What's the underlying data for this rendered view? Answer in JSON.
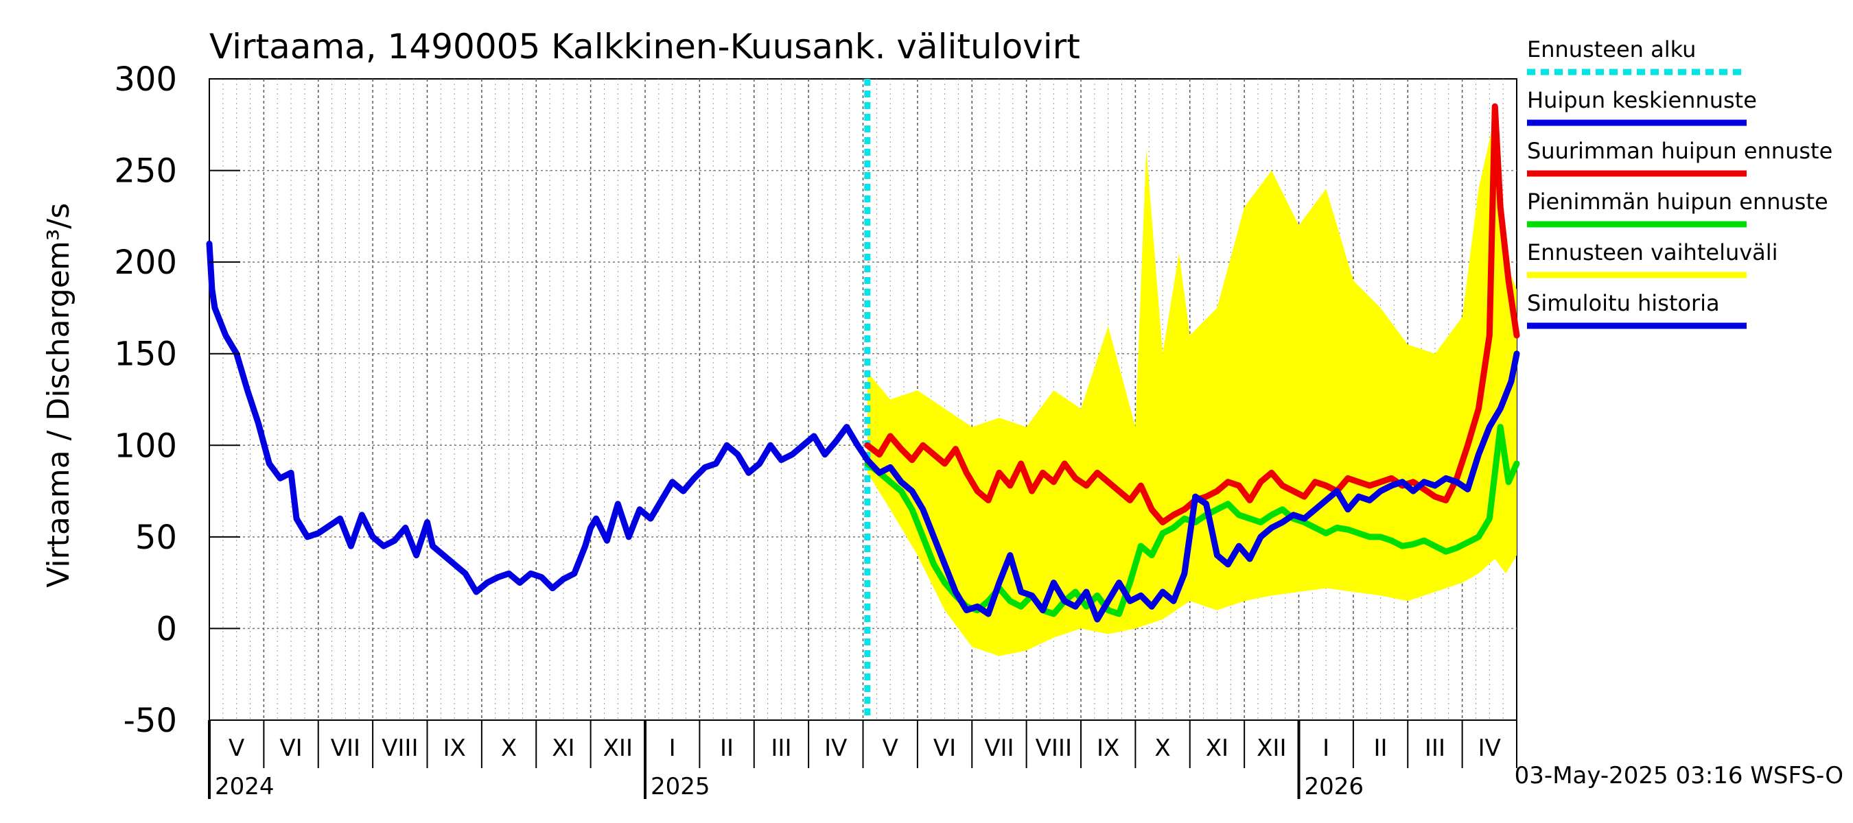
{
  "chart_data": {
    "type": "line",
    "title": "Virtaama, 1490005 Kalkkinen-Kuusank. välitulovirt",
    "ylabel": "Virtaama / Discharge",
    "yunit": "m³/s",
    "ylim": [
      -50,
      300
    ],
    "yticks": [
      -50,
      0,
      50,
      100,
      150,
      200,
      250,
      300
    ],
    "x_unit": "months since 2024-05-01",
    "xlim": [
      0,
      24
    ],
    "forecast_start": 12.08,
    "month_labels": [
      "V",
      "VI",
      "VII",
      "VIII",
      "IX",
      "X",
      "XI",
      "XII",
      "I",
      "II",
      "III",
      "IV",
      "V",
      "VI",
      "VII",
      "VIII",
      "IX",
      "X",
      "XI",
      "XII",
      "I",
      "II",
      "III",
      "IV"
    ],
    "year_labels": [
      {
        "label": "2024",
        "x": 0
      },
      {
        "label": "2025",
        "x": 8
      },
      {
        "label": "2026",
        "x": 20
      }
    ],
    "grid": true,
    "legend": [
      {
        "label": "Ennusteen alku",
        "color": "#00e5e5",
        "style": "dashed"
      },
      {
        "label": "Huipun keskiennuste",
        "color": "#0000e0",
        "style": "solid"
      },
      {
        "label": "Suurimman huipun ennuste",
        "color": "#ee0000",
        "style": "solid"
      },
      {
        "label": "Pienimmän huipun ennuste",
        "color": "#00dd00",
        "style": "solid"
      },
      {
        "label": "Ennusteen vaihteluväli",
        "color": "#ffff00",
        "style": "band"
      },
      {
        "label": "Simuloitu historia",
        "color": "#0000e0",
        "style": "solid"
      }
    ],
    "footer": "03-May-2025 03:16 WSFS-O",
    "series": [
      {
        "name": "Simuloitu historia",
        "color": "#0000e0",
        "x": [
          0,
          0.05,
          0.1,
          0.3,
          0.5,
          0.7,
          0.9,
          1.1,
          1.3,
          1.5,
          1.6,
          1.8,
          2.0,
          2.2,
          2.4,
          2.6,
          2.8,
          3.0,
          3.2,
          3.4,
          3.6,
          3.8,
          4.0,
          4.1,
          4.3,
          4.5,
          4.7,
          4.9,
          5.1,
          5.3,
          5.5,
          5.7,
          5.9,
          6.1,
          6.3,
          6.5,
          6.7,
          6.9,
          7.0,
          7.1,
          7.3,
          7.5,
          7.7,
          7.9,
          8.1,
          8.3,
          8.5,
          8.7,
          8.9,
          9.1,
          9.3,
          9.5,
          9.7,
          9.9,
          10.1,
          10.3,
          10.5,
          10.7,
          10.9,
          11.1,
          11.3,
          11.5,
          11.7,
          11.9,
          12.08
        ],
        "y": [
          210,
          185,
          175,
          160,
          150,
          130,
          112,
          90,
          82,
          85,
          60,
          50,
          52,
          56,
          60,
          45,
          62,
          50,
          45,
          48,
          55,
          40,
          58,
          45,
          40,
          35,
          30,
          20,
          25,
          28,
          30,
          25,
          30,
          28,
          22,
          27,
          30,
          45,
          55,
          60,
          48,
          68,
          50,
          65,
          60,
          70,
          80,
          75,
          82,
          88,
          90,
          100,
          95,
          85,
          90,
          100,
          92,
          95,
          100,
          105,
          95,
          102,
          110,
          100,
          92
        ]
      },
      {
        "name": "Huipun keskiennuste",
        "color": "#0000e0",
        "x": [
          12.08,
          12.3,
          12.5,
          12.7,
          12.9,
          13.1,
          13.3,
          13.5,
          13.7,
          13.9,
          14.1,
          14.3,
          14.5,
          14.7,
          14.9,
          15.1,
          15.3,
          15.5,
          15.7,
          15.9,
          16.1,
          16.3,
          16.5,
          16.7,
          16.9,
          17.1,
          17.3,
          17.5,
          17.7,
          17.9,
          18.1,
          18.3,
          18.5,
          18.7,
          18.9,
          19.1,
          19.3,
          19.5,
          19.7,
          19.9,
          20.1,
          20.3,
          20.5,
          20.7,
          20.9,
          21.1,
          21.3,
          21.5,
          21.7,
          21.9,
          22.1,
          22.3,
          22.5,
          22.7,
          22.9,
          23.1,
          23.3,
          23.5,
          23.7,
          23.9,
          24.0
        ],
        "y": [
          92,
          85,
          88,
          80,
          75,
          65,
          50,
          35,
          20,
          10,
          12,
          8,
          25,
          40,
          20,
          18,
          10,
          25,
          15,
          12,
          20,
          5,
          15,
          25,
          15,
          18,
          12,
          20,
          15,
          30,
          72,
          68,
          40,
          35,
          45,
          38,
          50,
          55,
          58,
          62,
          60,
          65,
          70,
          75,
          65,
          72,
          70,
          75,
          78,
          80,
          75,
          80,
          78,
          82,
          80,
          76,
          95,
          110,
          120,
          135,
          150
        ]
      },
      {
        "name": "Suurimman huipun ennuste",
        "color": "#ee0000",
        "x": [
          12.08,
          12.3,
          12.5,
          12.7,
          12.9,
          13.1,
          13.3,
          13.5,
          13.7,
          13.9,
          14.1,
          14.3,
          14.5,
          14.7,
          14.9,
          15.1,
          15.3,
          15.5,
          15.7,
          15.9,
          16.1,
          16.3,
          16.5,
          16.7,
          16.9,
          17.1,
          17.3,
          17.5,
          17.7,
          17.9,
          18.1,
          18.3,
          18.5,
          18.7,
          18.9,
          19.1,
          19.3,
          19.5,
          19.7,
          19.9,
          20.1,
          20.3,
          20.5,
          20.7,
          20.9,
          21.1,
          21.3,
          21.5,
          21.7,
          21.9,
          22.1,
          22.3,
          22.5,
          22.7,
          22.9,
          23.1,
          23.3,
          23.5,
          23.6,
          23.7,
          23.85,
          24.0
        ],
        "y": [
          100,
          95,
          105,
          98,
          92,
          100,
          95,
          90,
          98,
          85,
          75,
          70,
          85,
          78,
          90,
          75,
          85,
          80,
          90,
          82,
          78,
          85,
          80,
          75,
          70,
          78,
          65,
          58,
          62,
          65,
          70,
          72,
          75,
          80,
          78,
          70,
          80,
          85,
          78,
          75,
          72,
          80,
          78,
          75,
          82,
          80,
          78,
          80,
          82,
          78,
          80,
          76,
          72,
          70,
          82,
          100,
          120,
          160,
          285,
          230,
          190,
          160
        ]
      },
      {
        "name": "Pienimmän huipun ennuste",
        "color": "#00dd00",
        "x": [
          12.08,
          12.3,
          12.5,
          12.7,
          12.9,
          13.1,
          13.3,
          13.5,
          13.7,
          13.9,
          14.1,
          14.3,
          14.5,
          14.7,
          14.9,
          15.1,
          15.3,
          15.5,
          15.7,
          15.9,
          16.1,
          16.3,
          16.5,
          16.7,
          16.9,
          17.1,
          17.3,
          17.5,
          17.7,
          17.9,
          18.1,
          18.3,
          18.5,
          18.7,
          18.9,
          19.1,
          19.3,
          19.5,
          19.7,
          19.9,
          20.1,
          20.3,
          20.5,
          20.7,
          20.9,
          21.1,
          21.3,
          21.5,
          21.7,
          21.9,
          22.1,
          22.3,
          22.5,
          22.7,
          22.9,
          23.1,
          23.3,
          23.5,
          23.7,
          23.85,
          24.0
        ],
        "y": [
          90,
          85,
          80,
          75,
          65,
          50,
          35,
          25,
          18,
          12,
          10,
          15,
          22,
          15,
          12,
          18,
          10,
          8,
          15,
          20,
          12,
          18,
          10,
          8,
          25,
          45,
          40,
          52,
          55,
          60,
          58,
          62,
          65,
          68,
          62,
          60,
          58,
          62,
          65,
          60,
          58,
          55,
          52,
          55,
          54,
          52,
          50,
          50,
          48,
          45,
          46,
          48,
          45,
          42,
          44,
          47,
          50,
          60,
          110,
          80,
          90
        ]
      },
      {
        "name": "Ennusteen vaihteluväli (yläraja)",
        "color": "#ffff00",
        "x": [
          12.08,
          12.5,
          13.0,
          13.5,
          14.0,
          14.5,
          15.0,
          15.5,
          16.0,
          16.5,
          17.0,
          17.2,
          17.5,
          17.8,
          18.0,
          18.5,
          19.0,
          19.5,
          20.0,
          20.5,
          21.0,
          21.5,
          22.0,
          22.5,
          23.0,
          23.3,
          23.6,
          23.8,
          24.0
        ],
        "y": [
          140,
          125,
          130,
          120,
          110,
          115,
          110,
          130,
          120,
          165,
          110,
          262,
          150,
          205,
          160,
          175,
          230,
          250,
          220,
          240,
          190,
          175,
          155,
          150,
          170,
          240,
          280,
          200,
          185
        ]
      },
      {
        "name": "Ennusteen vaihteluväli (alaraja)",
        "color": "#ffff00",
        "x": [
          12.08,
          12.5,
          13.0,
          13.5,
          14.0,
          14.5,
          15.0,
          15.5,
          16.0,
          16.5,
          17.0,
          17.5,
          18.0,
          18.5,
          19.0,
          19.5,
          20.0,
          20.5,
          21.0,
          21.5,
          22.0,
          22.5,
          23.0,
          23.3,
          23.6,
          23.8,
          24.0
        ],
        "y": [
          85,
          65,
          40,
          10,
          -10,
          -15,
          -12,
          -5,
          0,
          -3,
          0,
          5,
          15,
          10,
          15,
          18,
          20,
          22,
          20,
          18,
          15,
          20,
          25,
          30,
          38,
          30,
          40
        ]
      }
    ]
  }
}
